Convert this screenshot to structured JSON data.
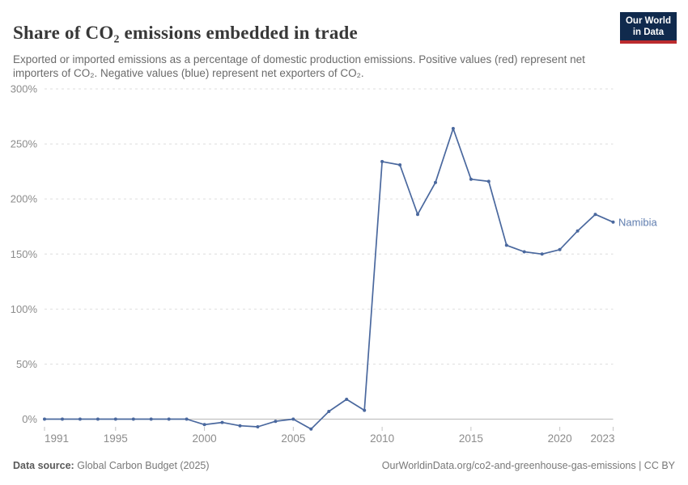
{
  "header": {
    "title": "Share of CO₂ emissions embedded in trade",
    "subtitle": "Exported or imported emissions as a percentage of domestic production emissions. Positive values (red) represent net importers of CO₂. Negative values (blue) represent net exporters of CO₂."
  },
  "logo": {
    "line1": "Our World",
    "line2": "in Data",
    "bg_color": "#102a4d",
    "accent_color": "#bb2b2e"
  },
  "chart_data": {
    "type": "line",
    "title": "Share of CO₂ emissions embedded in trade",
    "xlabel": "",
    "ylabel": "",
    "xlim": [
      1991,
      2023
    ],
    "ylim": [
      -15,
      300
    ],
    "grid": "horizontal-dashed",
    "legend_position": "end-of-line-label",
    "entity_label": "Namibia",
    "x_ticks": [
      1991,
      1995,
      2000,
      2005,
      2010,
      2015,
      2020,
      2023
    ],
    "y_ticks": [
      0,
      50,
      100,
      150,
      200,
      250,
      300
    ],
    "y_tick_suffix": "%",
    "x": [
      1991,
      1992,
      1993,
      1994,
      1995,
      1996,
      1997,
      1998,
      1999,
      2000,
      2001,
      2002,
      2003,
      2004,
      2005,
      2006,
      2007,
      2008,
      2009,
      2010,
      2011,
      2012,
      2013,
      2014,
      2015,
      2016,
      2017,
      2018,
      2019,
      2020,
      2021,
      2022,
      2023
    ],
    "series": [
      {
        "name": "Namibia",
        "color": "#4a689e",
        "label_color": "#5f7daf",
        "values": [
          0,
          0,
          0,
          0,
          0,
          0,
          0,
          0,
          0,
          -5,
          -3,
          -6,
          -7,
          -2,
          0,
          -9,
          7,
          18,
          8,
          234,
          231,
          186,
          215,
          264,
          218,
          216,
          158,
          152,
          150,
          154,
          171,
          186,
          179
        ]
      }
    ],
    "colors": {
      "gridline": "#dedede",
      "zero_line": "#b8b8b8",
      "tick_mark": "#c4c4c4",
      "axis_text": "#8c8c8c"
    }
  },
  "footer": {
    "source_label": "Data source:",
    "source_value": "Global Carbon Budget (2025)",
    "license": "OurWorldinData.org/co2-and-greenhouse-gas-emissions | CC BY"
  }
}
